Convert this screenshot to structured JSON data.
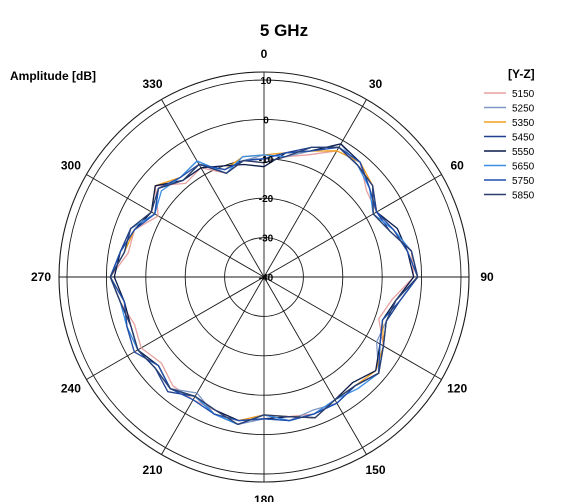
{
  "chart_data": {
    "type": "polar-line",
    "title": "5 GHz",
    "radial_label": "Amplitude [dB]",
    "rlim": [
      -40,
      10
    ],
    "radial_ticks": [
      "10",
      "0",
      "-10",
      "-20",
      "-30",
      "-40"
    ],
    "angle_ticks": [
      "0",
      "30",
      "60",
      "90",
      "120",
      "150",
      "180",
      "210",
      "240",
      "270",
      "300",
      "330"
    ],
    "angle_direction": "clockwise, 0 at top",
    "grid": true,
    "legend": {
      "title": "[Y-Z]",
      "placement": "top-right"
    },
    "angles": [
      0,
      10,
      20,
      30,
      40,
      50,
      60,
      70,
      80,
      90,
      100,
      110,
      120,
      130,
      140,
      150,
      160,
      170,
      180,
      190,
      200,
      210,
      220,
      230,
      240,
      250,
      260,
      270,
      280,
      290,
      300,
      310,
      320,
      330,
      340,
      350
    ],
    "series": [
      {
        "name": "5150",
        "color": "#e8a0a0",
        "values": [
          -11,
          -9,
          -7,
          -3,
          -2,
          -6,
          -7,
          -5,
          -2,
          -2,
          -7,
          -9,
          -5,
          -2,
          -4,
          -4,
          -3,
          -4,
          -5,
          -3,
          -4,
          -4,
          -4,
          -6,
          -4,
          -5,
          -3,
          -1,
          -5,
          -5,
          -9,
          -4,
          -9,
          -8,
          -12,
          -10
        ]
      },
      {
        "name": "5250",
        "color": "#7e97c6",
        "values": [
          -9,
          -9,
          -6,
          -1,
          -3,
          -4,
          -8,
          -5,
          -3,
          -1,
          -6,
          -7,
          -7,
          -2,
          -4,
          -3,
          -4,
          -3,
          -4,
          -2,
          -3,
          -6,
          -3,
          -4,
          -3,
          -3,
          -4,
          -1,
          -3,
          -4,
          -8,
          -5,
          -7,
          -6,
          -12,
          -10
        ]
      },
      {
        "name": "5350",
        "color": "#f0a020",
        "values": [
          -9,
          -8,
          -6,
          -3,
          -2,
          -4,
          -7,
          -5,
          -3,
          -1,
          -5,
          -8,
          -5,
          -3,
          -4,
          -4,
          -2,
          -4,
          -5,
          -3,
          -3,
          -5,
          -3,
          -5,
          -2,
          -3,
          -4,
          -1,
          -4,
          -5,
          -7,
          -4,
          -7,
          -7,
          -11,
          -9
        ]
      },
      {
        "name": "5450",
        "color": "#1f3f8f",
        "values": [
          -10,
          -8,
          -5,
          -2,
          -3,
          -4,
          -7,
          -6,
          -2,
          -1,
          -5,
          -7,
          -5,
          -2,
          -4,
          -3,
          -3,
          -3,
          -5,
          -2,
          -3,
          -5,
          -2,
          -4,
          -3,
          -4,
          -3,
          -1,
          -3,
          -4,
          -8,
          -5,
          -8,
          -7,
          -11,
          -10
        ]
      },
      {
        "name": "5550",
        "color": "#0b1b4a",
        "values": [
          -12,
          -8,
          -6,
          -1,
          -2,
          -5,
          -7,
          -4,
          -3,
          -2,
          -6,
          -8,
          -6,
          -3,
          -5,
          -4,
          -2,
          -4,
          -4,
          -3,
          -4,
          -5,
          -3,
          -5,
          -3,
          -4,
          -4,
          -2,
          -3,
          -5,
          -7,
          -4,
          -8,
          -8,
          -10,
          -11
        ]
      },
      {
        "name": "5650",
        "color": "#3a8ee6",
        "values": [
          -9,
          -9,
          -5,
          -2,
          -3,
          -5,
          -8,
          -5,
          -2,
          -1,
          -6,
          -7,
          -5,
          -2,
          -3,
          -4,
          -3,
          -3,
          -5,
          -2,
          -3,
          -5,
          -3,
          -4,
          -3,
          -3,
          -3,
          -1,
          -4,
          -4,
          -8,
          -6,
          -7,
          -6,
          -12,
          -9
        ]
      },
      {
        "name": "5750",
        "color": "#1e4fb0",
        "values": [
          -10,
          -8,
          -6,
          -2,
          -2,
          -5,
          -7,
          -5,
          -3,
          -1,
          -5,
          -8,
          -6,
          -2,
          -4,
          -3,
          -3,
          -3,
          -4,
          -3,
          -3,
          -4,
          -3,
          -5,
          -2,
          -3,
          -4,
          -1,
          -3,
          -5,
          -8,
          -5,
          -7,
          -7,
          -11,
          -10
        ]
      },
      {
        "name": "5850",
        "color": "#2b3e6e",
        "values": [
          -11,
          -9,
          -5,
          -2,
          -3,
          -4,
          -8,
          -6,
          -2,
          -1,
          -6,
          -7,
          -5,
          -2,
          -4,
          -4,
          -2,
          -4,
          -5,
          -2,
          -4,
          -5,
          -3,
          -4,
          -3,
          -4,
          -3,
          -1,
          -4,
          -4,
          -7,
          -5,
          -8,
          -7,
          -12,
          -10
        ]
      }
    ]
  }
}
